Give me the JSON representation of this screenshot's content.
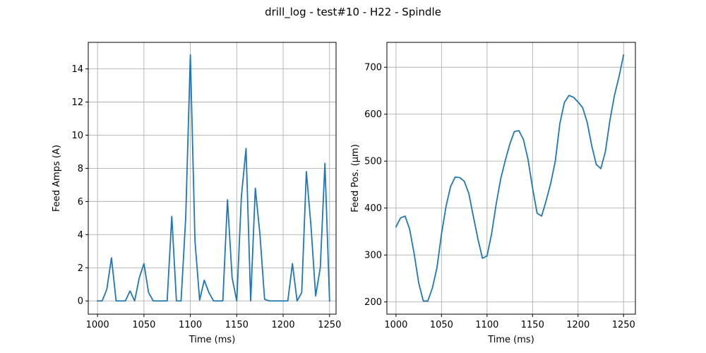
{
  "figure": {
    "suptitle": "drill_log - test#10 - H22 - Spindle"
  },
  "chart_data": [
    {
      "type": "line",
      "title": "",
      "xlabel": "Time (ms)",
      "ylabel": "Feed Amps (A)",
      "xlim": [
        990,
        1257
      ],
      "ylim": [
        -0.8,
        15.6
      ],
      "xticks": [
        1000,
        1050,
        1100,
        1150,
        1200,
        1250
      ],
      "yticks": [
        0,
        2,
        4,
        6,
        8,
        10,
        12,
        14
      ],
      "grid": true,
      "color": "#1f77b4",
      "series": [
        {
          "name": "Feed Amps",
          "x": [
            1000,
            1005,
            1010,
            1015,
            1020,
            1025,
            1030,
            1035,
            1040,
            1045,
            1050,
            1055,
            1060,
            1065,
            1070,
            1075,
            1080,
            1085,
            1090,
            1095,
            1100,
            1105,
            1110,
            1115,
            1120,
            1125,
            1130,
            1135,
            1140,
            1145,
            1150,
            1155,
            1160,
            1165,
            1170,
            1175,
            1180,
            1185,
            1190,
            1195,
            1200,
            1205,
            1210,
            1215,
            1220,
            1225,
            1230,
            1235,
            1240,
            1245,
            1250
          ],
          "y": [
            0,
            0,
            0.7,
            2.6,
            0,
            0,
            0,
            0.6,
            0,
            1.4,
            2.25,
            0.5,
            0,
            0,
            0,
            0,
            5.1,
            0,
            0,
            5.0,
            14.85,
            3.6,
            0.05,
            1.25,
            0.5,
            0,
            0,
            0,
            6.1,
            1.4,
            0,
            6.3,
            9.2,
            0,
            6.8,
            4.0,
            0.1,
            0,
            0,
            0,
            0,
            0,
            2.25,
            0,
            0.5,
            7.8,
            4.5,
            0.3,
            2.0,
            8.3,
            0
          ]
        }
      ]
    },
    {
      "type": "line",
      "title": "",
      "xlabel": "Time (ms)",
      "ylabel": "Feed Pos. (µm)",
      "xlim": [
        990,
        1263
      ],
      "ylim": [
        174,
        753
      ],
      "xticks": [
        1000,
        1050,
        1100,
        1150,
        1200,
        1250
      ],
      "yticks": [
        200,
        300,
        400,
        500,
        600,
        700
      ],
      "grid": true,
      "color": "#1f77b4",
      "series": [
        {
          "name": "Feed Pos.",
          "x": [
            1000,
            1005,
            1010,
            1015,
            1020,
            1025,
            1030,
            1035,
            1040,
            1045,
            1050,
            1055,
            1060,
            1065,
            1070,
            1075,
            1080,
            1085,
            1090,
            1095,
            1100,
            1105,
            1110,
            1115,
            1120,
            1125,
            1130,
            1135,
            1140,
            1145,
            1150,
            1155,
            1160,
            1165,
            1170,
            1175,
            1180,
            1185,
            1190,
            1195,
            1200,
            1205,
            1210,
            1215,
            1220,
            1225,
            1230,
            1235,
            1240,
            1245,
            1250
          ],
          "y": [
            360,
            379,
            383,
            355,
            302,
            240,
            202,
            202,
            230,
            273,
            345,
            404,
            446,
            466,
            465,
            457,
            431,
            382,
            334,
            293,
            298,
            345,
            408,
            462,
            501,
            536,
            563,
            565,
            546,
            504,
            443,
            389,
            383,
            416,
            453,
            500,
            580,
            625,
            640,
            636,
            626,
            614,
            583,
            533,
            493,
            484,
            520,
            587,
            640,
            680,
            726
          ]
        }
      ]
    }
  ]
}
